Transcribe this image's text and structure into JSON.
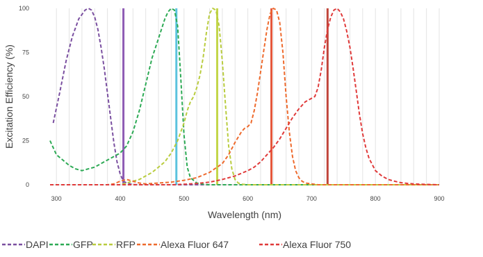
{
  "chart_data": {
    "type": "line",
    "title": "",
    "xlabel": "Wavelength (nm)",
    "ylabel": "Excitation Efficiency (%)",
    "xlim": [
      290,
      900
    ],
    "ylim": [
      0,
      100
    ],
    "x_ticks": [
      300,
      400,
      500,
      600,
      700,
      800,
      900
    ],
    "x_minor_step": 20,
    "y_ticks": [
      0,
      25,
      50,
      75,
      100
    ],
    "grid": "vertical gridlines every 20 nm",
    "legend_position": "bottom",
    "series": [
      {
        "name": "DAPI",
        "color": "#7A4FA0",
        "style": "dashed",
        "x": [
          295,
          305,
          315,
          325,
          335,
          345,
          350,
          355,
          360,
          365,
          370,
          375,
          380,
          385,
          390,
          395,
          400,
          405,
          410,
          415,
          420,
          430,
          440,
          450,
          470,
          900
        ],
        "y": [
          35,
          52,
          70,
          84,
          94,
          99,
          100,
          99,
          95,
          88,
          78,
          66,
          52,
          38,
          24,
          13,
          6,
          2,
          1,
          0.5,
          0.2,
          0,
          0,
          0,
          0,
          0
        ]
      },
      {
        "name": "GFP",
        "color": "#2DAA55",
        "style": "dashed",
        "x": [
          290,
          300,
          310,
          320,
          330,
          340,
          350,
          360,
          370,
          380,
          390,
          400,
          405,
          410,
          420,
          430,
          440,
          450,
          460,
          470,
          475,
          480,
          485,
          490,
          495,
          500,
          505,
          510,
          520,
          530,
          540,
          560,
          900
        ],
        "y": [
          25,
          17,
          14,
          11,
          9,
          8,
          9,
          10,
          12,
          14,
          16,
          18,
          20,
          22,
          30,
          42,
          57,
          72,
          83,
          94,
          98,
          100,
          99,
          90,
          60,
          28,
          10,
          4,
          1,
          0.3,
          0,
          0,
          0
        ]
      },
      {
        "name": "RFP",
        "color": "#B9CC3E",
        "style": "dashed",
        "x": [
          290,
          400,
          410,
          420,
          430,
          440,
          450,
          460,
          470,
          480,
          490,
          500,
          505,
          510,
          515,
          520,
          525,
          530,
          535,
          540,
          545,
          550,
          555,
          560,
          565,
          570,
          575,
          580,
          585,
          590,
          600,
          900
        ],
        "y": [
          0,
          0,
          1,
          2,
          3,
          5,
          7,
          10,
          13,
          18,
          25,
          35,
          42,
          47,
          50,
          55,
          62,
          72,
          86,
          97,
          100,
          99,
          90,
          70,
          45,
          22,
          9,
          3,
          1,
          0.3,
          0,
          0
        ]
      },
      {
        "name": "Alexa Fluor 647",
        "color": "#EE6A2D",
        "style": "dashed",
        "x": [
          290,
          380,
          390,
          400,
          410,
          420,
          430,
          440,
          460,
          480,
          500,
          520,
          540,
          560,
          570,
          580,
          590,
          595,
          600,
          605,
          610,
          615,
          620,
          625,
          630,
          635,
          640,
          645,
          650,
          655,
          660,
          665,
          670,
          675,
          680,
          685,
          690,
          700,
          710,
          900
        ],
        "y": [
          0,
          0,
          0.5,
          2,
          3,
          2,
          1,
          0.5,
          1,
          1.5,
          2.5,
          4,
          7,
          12,
          17,
          24,
          30,
          32,
          33,
          35,
          42,
          52,
          64,
          76,
          88,
          97,
          100,
          99,
          92,
          75,
          50,
          30,
          16,
          8,
          4,
          2,
          1,
          0.5,
          0,
          0
        ]
      },
      {
        "name": "Alexa Fluor 750",
        "color": "#E03A3A",
        "style": "dashed",
        "x": [
          290,
          480,
          500,
          520,
          540,
          560,
          580,
          600,
          610,
          620,
          630,
          640,
          650,
          660,
          670,
          680,
          690,
          700,
          705,
          710,
          715,
          720,
          725,
          730,
          735,
          740,
          745,
          750,
          755,
          760,
          765,
          770,
          775,
          780,
          785,
          790,
          800,
          810,
          820,
          830,
          840,
          850,
          860,
          870,
          880,
          890,
          900
        ],
        "y": [
          0,
          0,
          0.3,
          0.7,
          1.5,
          3,
          5,
          8,
          10,
          13,
          17,
          21,
          26,
          32,
          38,
          43,
          47,
          49,
          50,
          55,
          65,
          78,
          88,
          95,
          99,
          100,
          98,
          94,
          87,
          78,
          66,
          53,
          40,
          29,
          21,
          15,
          8,
          5,
          3,
          2,
          1.2,
          0.8,
          0.5,
          0.3,
          0.2,
          0.1,
          0
        ]
      }
    ],
    "laser_lines": [
      {
        "x": 405,
        "color": "#8E5BB4"
      },
      {
        "x": 488,
        "color": "#5BC3DE"
      },
      {
        "x": 552,
        "color": "#C3D64A"
      },
      {
        "x": 637,
        "color": "#E6563A"
      },
      {
        "x": 725,
        "color": "#C0453A"
      }
    ]
  }
}
